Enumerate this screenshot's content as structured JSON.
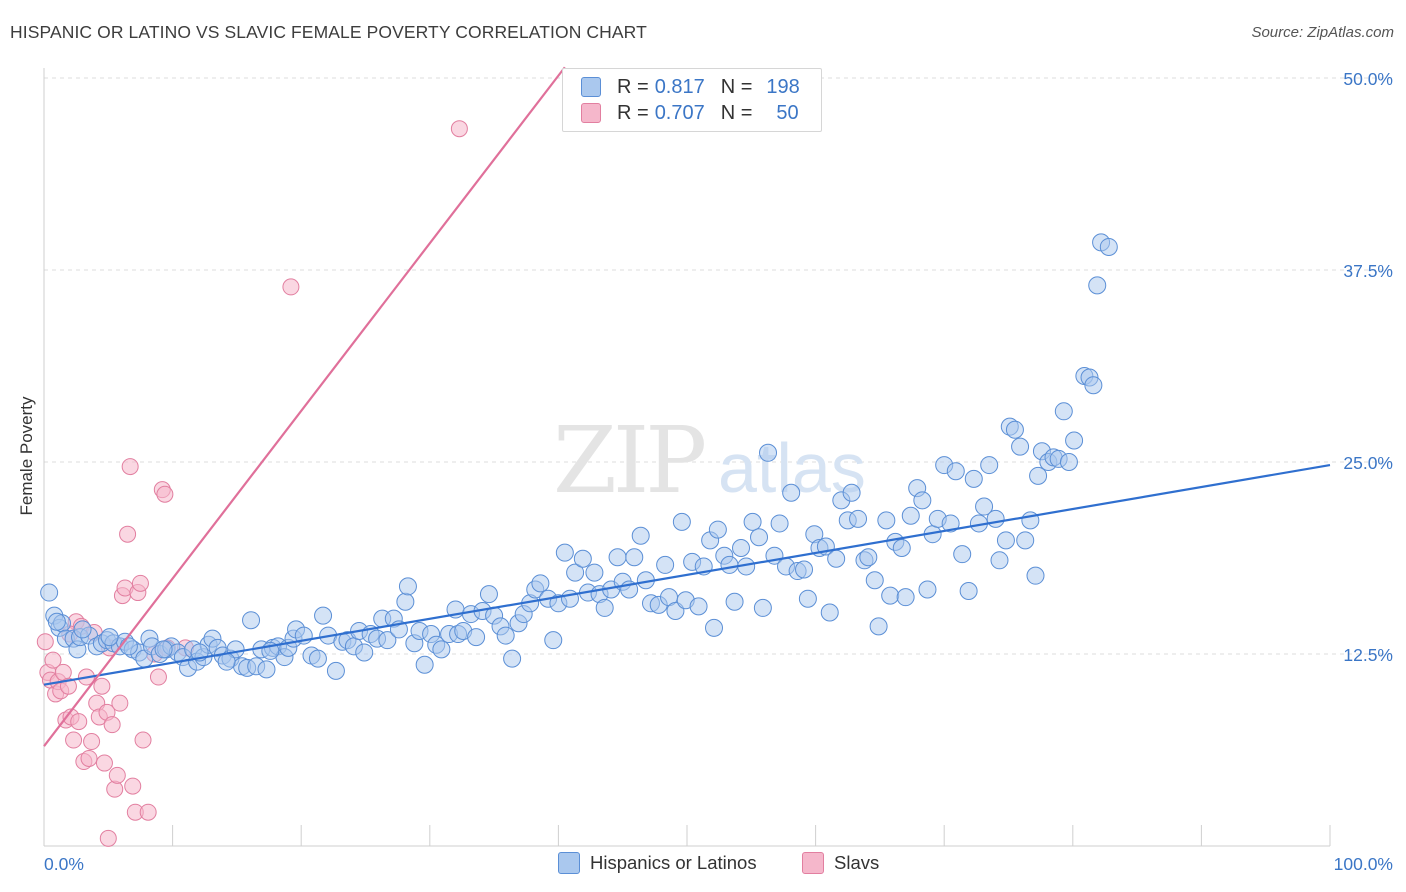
{
  "title": "HISPANIC OR LATINO VS SLAVIC FEMALE POVERTY CORRELATION CHART",
  "source": "Source: ZipAtlas.com",
  "watermark": "ZIPatlas",
  "colors": {
    "blue_fill": "#aac8ee",
    "blue_stroke": "#5b8fd6",
    "blue_line": "#2f6fcf",
    "pink_fill": "#f5b7cb",
    "pink_stroke": "#e27fa0",
    "pink_line": "#e0709a",
    "tick_label": "#3b76c6",
    "grid": "#dddddd"
  },
  "legend": {
    "rows": [
      {
        "r_label": "R =",
        "r_value": "0.817",
        "n_label": "N =",
        "n_value": "198",
        "color": "#aac8ee",
        "border": "#5b8fd6"
      },
      {
        "r_label": "R =",
        "r_value": "0.707",
        "n_label": "N =",
        "n_value": "50",
        "color": "#f5b7cb",
        "border": "#e27fa0"
      }
    ]
  },
  "bottom_legend": [
    {
      "label": "Hispanics or Latinos",
      "color": "#aac8ee",
      "border": "#5b8fd6"
    },
    {
      "label": "Slavs",
      "color": "#f5b7cb",
      "border": "#e27fa0"
    }
  ],
  "chart_data": {
    "type": "scatter",
    "title": "HISPANIC OR LATINO VS SLAVIC FEMALE POVERTY CORRELATION CHART",
    "xlabel": "",
    "ylabel": "Female Poverty",
    "xlim": [
      0,
      100
    ],
    "ylim": [
      0,
      50
    ],
    "x_ticks": [
      "0.0%",
      "100.0%"
    ],
    "y_ticks": [
      {
        "value": 12.5,
        "label": "12.5%"
      },
      {
        "value": 25,
        "label": "25.0%"
      },
      {
        "value": 37.5,
        "label": "37.5%"
      },
      {
        "value": 50,
        "label": "50.0%"
      }
    ],
    "grid": true,
    "legend_position": "top-center",
    "series": [
      {
        "name": "Hispanics or Latinos",
        "r": 0.817,
        "n": 198,
        "trend": {
          "x": [
            0,
            100
          ],
          "y": [
            10.5,
            24.8
          ]
        },
        "points": [
          [
            0.4,
            16.5
          ],
          [
            0.8,
            15.0
          ],
          [
            1.2,
            14.2
          ],
          [
            1.4,
            14.5
          ],
          [
            1.7,
            13.5
          ],
          [
            2.3,
            13.5
          ],
          [
            2.6,
            12.8
          ],
          [
            2.8,
            13.6
          ],
          [
            3.5,
            13.7
          ],
          [
            4.1,
            13.0
          ],
          [
            4.5,
            13.2
          ],
          [
            4.9,
            13.4
          ],
          [
            5.4,
            13.2
          ],
          [
            5.9,
            13.0
          ],
          [
            6.3,
            13.3
          ],
          [
            6.9,
            12.8
          ],
          [
            7.4,
            12.6
          ],
          [
            7.8,
            12.2
          ],
          [
            8.2,
            13.5
          ],
          [
            8.4,
            13.0
          ],
          [
            9.0,
            12.5
          ],
          [
            9.5,
            12.8
          ],
          [
            9.9,
            13.0
          ],
          [
            10.4,
            12.6
          ],
          [
            10.8,
            12.3
          ],
          [
            11.2,
            11.6
          ],
          [
            11.6,
            12.8
          ],
          [
            11.9,
            12.0
          ],
          [
            12.4,
            12.3
          ],
          [
            12.8,
            13.1
          ],
          [
            13.1,
            13.5
          ],
          [
            13.5,
            12.9
          ],
          [
            13.9,
            12.4
          ],
          [
            14.5,
            12.2
          ],
          [
            14.9,
            12.8
          ],
          [
            15.4,
            11.7
          ],
          [
            15.8,
            11.6
          ],
          [
            16.1,
            14.7
          ],
          [
            16.5,
            11.7
          ],
          [
            16.9,
            12.8
          ],
          [
            17.3,
            11.5
          ],
          [
            17.8,
            12.9
          ],
          [
            18.2,
            13.0
          ],
          [
            18.7,
            12.3
          ],
          [
            19.0,
            12.9
          ],
          [
            19.4,
            13.5
          ],
          [
            19.6,
            14.1
          ],
          [
            20.2,
            13.7
          ],
          [
            20.8,
            12.4
          ],
          [
            21.3,
            12.2
          ],
          [
            21.7,
            15.0
          ],
          [
            22.1,
            13.7
          ],
          [
            22.7,
            11.4
          ],
          [
            23.2,
            13.3
          ],
          [
            23.6,
            13.4
          ],
          [
            24.1,
            13.0
          ],
          [
            24.5,
            14.0
          ],
          [
            24.9,
            12.6
          ],
          [
            25.4,
            13.8
          ],
          [
            25.9,
            13.5
          ],
          [
            26.3,
            14.8
          ],
          [
            26.7,
            13.4
          ],
          [
            27.2,
            14.8
          ],
          [
            27.6,
            14.1
          ],
          [
            28.1,
            15.9
          ],
          [
            28.3,
            16.9
          ],
          [
            28.8,
            13.2
          ],
          [
            29.2,
            14.0
          ],
          [
            29.6,
            11.8
          ],
          [
            30.1,
            13.8
          ],
          [
            30.5,
            13.1
          ],
          [
            30.9,
            12.8
          ],
          [
            31.5,
            13.8
          ],
          [
            32.0,
            15.4
          ],
          [
            32.2,
            13.8
          ],
          [
            32.6,
            14.0
          ],
          [
            33.2,
            15.1
          ],
          [
            33.6,
            13.6
          ],
          [
            34.1,
            15.3
          ],
          [
            34.6,
            16.4
          ],
          [
            35.0,
            15.0
          ],
          [
            35.5,
            14.3
          ],
          [
            35.9,
            13.7
          ],
          [
            36.4,
            12.2
          ],
          [
            36.9,
            14.5
          ],
          [
            37.3,
            15.1
          ],
          [
            37.8,
            15.8
          ],
          [
            38.2,
            16.7
          ],
          [
            38.6,
            17.1
          ],
          [
            39.2,
            16.1
          ],
          [
            39.6,
            13.4
          ],
          [
            40.0,
            15.8
          ],
          [
            40.5,
            19.1
          ],
          [
            40.9,
            16.1
          ],
          [
            41.3,
            17.8
          ],
          [
            41.9,
            18.7
          ],
          [
            42.3,
            16.5
          ],
          [
            42.8,
            17.8
          ],
          [
            43.2,
            16.4
          ],
          [
            43.6,
            15.5
          ],
          [
            44.1,
            16.7
          ],
          [
            44.6,
            18.8
          ],
          [
            45.0,
            17.2
          ],
          [
            45.5,
            16.7
          ],
          [
            45.9,
            18.8
          ],
          [
            46.4,
            20.2
          ],
          [
            46.8,
            17.3
          ],
          [
            47.2,
            15.8
          ],
          [
            47.8,
            15.7
          ],
          [
            48.3,
            18.3
          ],
          [
            48.6,
            16.2
          ],
          [
            49.1,
            15.3
          ],
          [
            49.6,
            21.1
          ],
          [
            49.9,
            16.0
          ],
          [
            50.4,
            18.5
          ],
          [
            50.9,
            15.6
          ],
          [
            51.3,
            18.2
          ],
          [
            51.8,
            19.9
          ],
          [
            52.1,
            14.2
          ],
          [
            52.4,
            20.6
          ],
          [
            52.9,
            18.9
          ],
          [
            53.3,
            18.3
          ],
          [
            53.7,
            15.9
          ],
          [
            54.2,
            19.4
          ],
          [
            54.6,
            18.2
          ],
          [
            55.1,
            21.1
          ],
          [
            55.6,
            20.1
          ],
          [
            55.9,
            15.5
          ],
          [
            56.3,
            25.6
          ],
          [
            56.8,
            18.9
          ],
          [
            57.2,
            21.0
          ],
          [
            57.7,
            18.2
          ],
          [
            58.1,
            23.0
          ],
          [
            58.6,
            17.9
          ],
          [
            59.1,
            18.0
          ],
          [
            59.4,
            16.1
          ],
          [
            59.9,
            20.3
          ],
          [
            60.3,
            19.4
          ],
          [
            60.8,
            19.5
          ],
          [
            61.1,
            15.2
          ],
          [
            61.6,
            18.7
          ],
          [
            62.0,
            22.5
          ],
          [
            62.5,
            21.2
          ],
          [
            62.8,
            23.0
          ],
          [
            63.3,
            21.3
          ],
          [
            63.8,
            18.6
          ],
          [
            64.1,
            18.8
          ],
          [
            64.6,
            17.3
          ],
          [
            64.9,
            14.3
          ],
          [
            65.5,
            21.2
          ],
          [
            65.8,
            16.3
          ],
          [
            66.2,
            19.8
          ],
          [
            66.7,
            19.4
          ],
          [
            67.0,
            16.2
          ],
          [
            67.4,
            21.5
          ],
          [
            67.9,
            23.3
          ],
          [
            68.3,
            22.5
          ],
          [
            68.7,
            16.7
          ],
          [
            69.1,
            20.3
          ],
          [
            69.5,
            21.3
          ],
          [
            70.0,
            24.8
          ],
          [
            70.5,
            21.0
          ],
          [
            70.9,
            24.4
          ],
          [
            71.4,
            19.0
          ],
          [
            71.9,
            16.6
          ],
          [
            72.3,
            23.9
          ],
          [
            72.7,
            21.0
          ],
          [
            73.1,
            22.1
          ],
          [
            73.5,
            24.8
          ],
          [
            74.0,
            21.3
          ],
          [
            74.3,
            18.6
          ],
          [
            74.8,
            19.9
          ],
          [
            75.1,
            27.3
          ],
          [
            75.5,
            27.1
          ],
          [
            75.9,
            26.0
          ],
          [
            76.3,
            19.9
          ],
          [
            76.7,
            21.2
          ],
          [
            77.1,
            17.6
          ],
          [
            77.3,
            24.1
          ],
          [
            77.6,
            25.7
          ],
          [
            78.1,
            25.0
          ],
          [
            78.5,
            25.3
          ],
          [
            78.9,
            25.2
          ],
          [
            79.3,
            28.3
          ],
          [
            79.7,
            25.0
          ],
          [
            80.1,
            26.4
          ],
          [
            80.9,
            30.6
          ],
          [
            81.3,
            30.5
          ],
          [
            81.6,
            30.0
          ],
          [
            81.9,
            36.5
          ],
          [
            82.2,
            39.3
          ],
          [
            82.8,
            39.0
          ],
          [
            1.0,
            14.6
          ],
          [
            3.0,
            14.1
          ],
          [
            5.1,
            13.6
          ],
          [
            6.6,
            13.0
          ],
          [
            9.3,
            12.8
          ],
          [
            12.1,
            12.6
          ],
          [
            14.2,
            12.0
          ],
          [
            17.6,
            12.7
          ]
        ]
      },
      {
        "name": "Slavs",
        "r": 0.707,
        "n": 50,
        "trend": {
          "x": [
            0,
            40.5
          ],
          "y": [
            6.5,
            50.7
          ]
        },
        "points": [
          [
            0.1,
            13.3
          ],
          [
            0.3,
            11.3
          ],
          [
            0.5,
            10.8
          ],
          [
            0.7,
            12.1
          ],
          [
            0.9,
            9.9
          ],
          [
            1.1,
            10.7
          ],
          [
            1.3,
            10.1
          ],
          [
            1.5,
            11.3
          ],
          [
            1.7,
            8.2
          ],
          [
            1.9,
            10.4
          ],
          [
            2.1,
            8.4
          ],
          [
            2.3,
            6.9
          ],
          [
            2.5,
            14.6
          ],
          [
            2.7,
            8.1
          ],
          [
            2.9,
            14.3
          ],
          [
            3.1,
            5.5
          ],
          [
            3.3,
            11.0
          ],
          [
            3.5,
            5.7
          ],
          [
            3.7,
            6.8
          ],
          [
            3.9,
            13.9
          ],
          [
            4.1,
            9.3
          ],
          [
            4.3,
            8.4
          ],
          [
            4.5,
            10.4
          ],
          [
            4.7,
            5.4
          ],
          [
            4.9,
            8.7
          ],
          [
            5.1,
            12.9
          ],
          [
            5.3,
            7.9
          ],
          [
            5.5,
            3.7
          ],
          [
            5.7,
            4.6
          ],
          [
            5.9,
            9.3
          ],
          [
            6.1,
            16.3
          ],
          [
            6.3,
            16.8
          ],
          [
            6.5,
            20.3
          ],
          [
            6.7,
            24.7
          ],
          [
            6.9,
            3.9
          ],
          [
            7.1,
            2.2
          ],
          [
            7.3,
            16.5
          ],
          [
            7.5,
            17.1
          ],
          [
            7.7,
            6.9
          ],
          [
            8.1,
            2.2
          ],
          [
            8.6,
            12.5
          ],
          [
            8.9,
            11.0
          ],
          [
            9.2,
            23.2
          ],
          [
            9.4,
            22.9
          ],
          [
            9.6,
            12.9
          ],
          [
            11.0,
            12.9
          ],
          [
            19.2,
            36.4
          ],
          [
            32.3,
            46.7
          ],
          [
            5.0,
            0.5
          ],
          [
            2.0,
            13.8
          ]
        ]
      }
    ]
  }
}
